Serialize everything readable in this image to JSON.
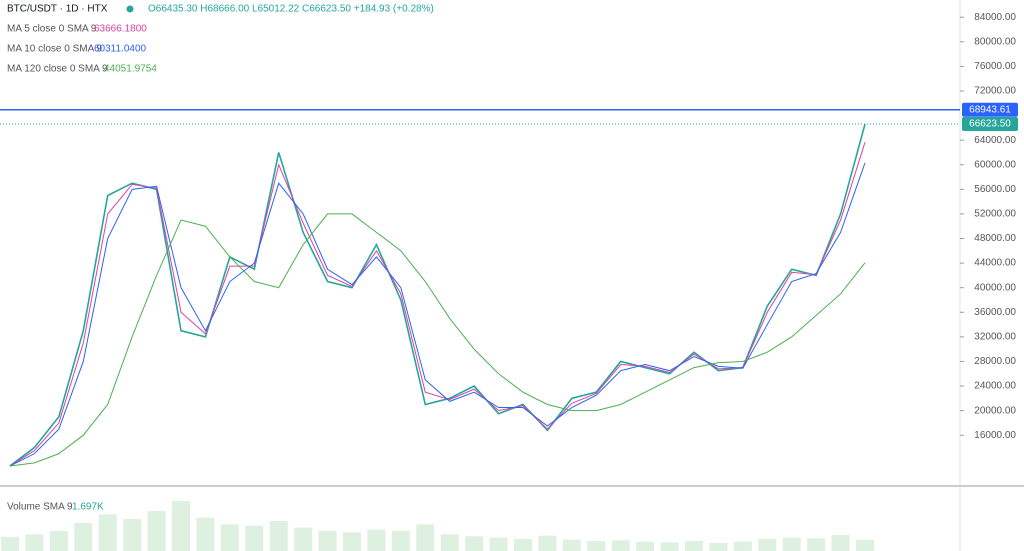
{
  "chart_data": {
    "type": "line",
    "symbol": "BTC/USDT · 1D · HTX",
    "ohlc_text": "O66435.30 H68666.00 L65012.22 C66623.50 +184.93 (+0.28%)",
    "ylim": [
      7900,
      86800
    ],
    "yticks": [
      {
        "value": 84000,
        "label": "84000.00"
      },
      {
        "value": 80000,
        "label": "80000.00"
      },
      {
        "value": 76000,
        "label": "76000.00"
      },
      {
        "value": 72000,
        "label": "72000.00"
      },
      {
        "value": 64000,
        "label": "64000.00"
      },
      {
        "value": 60000,
        "label": "60000.00"
      },
      {
        "value": 56000,
        "label": "56000.00"
      },
      {
        "value": 52000,
        "label": "52000.00"
      },
      {
        "value": 48000,
        "label": "48000.00"
      },
      {
        "value": 44000,
        "label": "44000.00"
      },
      {
        "value": 40000,
        "label": "40000.00"
      },
      {
        "value": 36000,
        "label": "36000.00"
      },
      {
        "value": 32000,
        "label": "32000.00"
      },
      {
        "value": 28000,
        "label": "28000.00"
      },
      {
        "value": 24000,
        "label": "24000.00"
      },
      {
        "value": 20000,
        "label": "20000.00"
      },
      {
        "value": 16000,
        "label": "16000.00"
      }
    ],
    "price_lines": [
      {
        "value": 68943.61,
        "label": "68943.61",
        "color": "#2962ff"
      },
      {
        "value": 66623.5,
        "label": "66623.50",
        "color": "#26a69a"
      }
    ],
    "series": [
      {
        "name": "Close",
        "color": "#26a69a",
        "values": [
          11000,
          14000,
          19000,
          33000,
          55000,
          57000,
          56000,
          33000,
          32000,
          45000,
          43000,
          62000,
          49000,
          41000,
          40000,
          47000,
          38000,
          21000,
          22000,
          24000,
          19500,
          21000,
          16800,
          22000,
          23000,
          28000,
          27000,
          26000,
          29500,
          26500,
          27000,
          37000,
          43000,
          42000,
          52000,
          66623.5
        ]
      },
      {
        "name": "MA 5 close 0 SMA 9",
        "color": "#e040a0",
        "value_label": "63666.1800",
        "values": [
          11000,
          13500,
          18000,
          31000,
          52000,
          56800,
          56200,
          36000,
          32500,
          43500,
          43500,
          60000,
          50500,
          42000,
          40200,
          46000,
          39000,
          23000,
          21800,
          23500,
          20000,
          20800,
          17000,
          21200,
          22800,
          27500,
          27200,
          26200,
          29200,
          26800,
          27000,
          36000,
          42500,
          42100,
          51000,
          63666.18
        ]
      },
      {
        "name": "MA 10 close 0 SMA 9",
        "color": "#2962ff",
        "value_label": "60311.0400",
        "values": [
          11000,
          13000,
          17000,
          28000,
          48000,
          56000,
          56500,
          40000,
          33000,
          41000,
          44000,
          57000,
          52000,
          43000,
          40500,
          45000,
          40000,
          25000,
          21500,
          23000,
          20500,
          20500,
          17500,
          20500,
          22500,
          26500,
          27500,
          26500,
          28800,
          27200,
          26900,
          34000,
          41000,
          42300,
          49000,
          60311.04
        ]
      },
      {
        "name": "MA 120 close 0 SMA 9",
        "color": "#4caf50",
        "value_label": "44051.9754",
        "values": [
          11000,
          11500,
          13000,
          16000,
          21000,
          32000,
          42000,
          51000,
          50000,
          45000,
          41000,
          40000,
          47000,
          52000,
          52000,
          49000,
          46000,
          41000,
          35000,
          30000,
          26000,
          23000,
          21000,
          20000,
          20000,
          21000,
          23000,
          25000,
          27000,
          27800,
          28000,
          29500,
          32000,
          35500,
          39000,
          44051.9754
        ]
      }
    ],
    "volume": {
      "name": "Volume SMA 9",
      "value_label": "1.697K",
      "color": "#c8e6c9",
      "values": [
        2.1,
        2.5,
        3.0,
        4.2,
        5.5,
        4.8,
        6.0,
        7.5,
        5.0,
        4.0,
        3.8,
        4.5,
        3.5,
        3.0,
        2.8,
        3.2,
        3.0,
        4.0,
        2.5,
        2.2,
        2.0,
        1.8,
        2.3,
        1.7,
        1.5,
        1.6,
        1.4,
        1.3,
        1.5,
        1.2,
        1.4,
        1.8,
        2.0,
        1.9,
        2.4,
        1.7
      ]
    }
  }
}
